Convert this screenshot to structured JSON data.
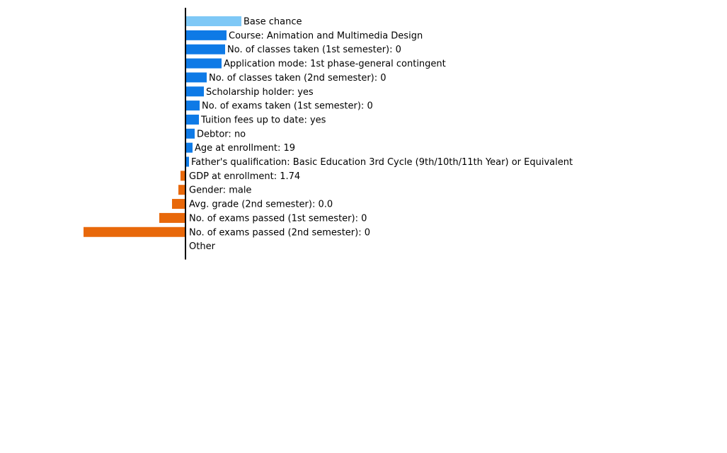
{
  "chart_data": {
    "type": "bar",
    "orientation": "horizontal",
    "title": "",
    "xlabel": "",
    "ylabel": "",
    "grid": false,
    "legend": "none",
    "colors": {
      "base": "#7ec8f6",
      "positive": "#0e7ae6",
      "negative": "#e8680a",
      "axis": "#000000"
    },
    "bars": [
      {
        "label": "Base chance",
        "value": 7.9,
        "kind": "base"
      },
      {
        "label": "Course: Animation and Multimedia Design",
        "value": 5.8,
        "kind": "positive"
      },
      {
        "label": "No. of classes taken (1st semester): 0",
        "value": 5.6,
        "kind": "positive"
      },
      {
        "label": "Application mode: 1st phase-general contingent",
        "value": 5.1,
        "kind": "positive"
      },
      {
        "label": "No. of classes taken (2nd semester): 0",
        "value": 3.0,
        "kind": "positive"
      },
      {
        "label": "Scholarship holder: yes",
        "value": 2.6,
        "kind": "positive"
      },
      {
        "label": "No. of exams taken (1st semester): 0",
        "value": 2.0,
        "kind": "positive"
      },
      {
        "label": "Tuition fees up to date: yes",
        "value": 1.9,
        "kind": "positive"
      },
      {
        "label": "Debtor: no",
        "value": 1.3,
        "kind": "positive"
      },
      {
        "label": "Age at enrollment: 19",
        "value": 1.0,
        "kind": "positive"
      },
      {
        "label": "Father's qualification: Basic Education 3rd Cycle (9th/10th/11th Year) or Equivalent",
        "value": 0.5,
        "kind": "positive"
      },
      {
        "label": "GDP at enrollment: 1.74",
        "value": -0.7,
        "kind": "negative"
      },
      {
        "label": "Gender: male",
        "value": -1.0,
        "kind": "negative"
      },
      {
        "label": "Avg. grade (2nd semester): 0.0",
        "value": -1.9,
        "kind": "negative"
      },
      {
        "label": "No. of exams passed (1st semester): 0",
        "value": -3.7,
        "kind": "negative"
      },
      {
        "label": "No. of exams passed (2nd semester): 0",
        "value": -14.4,
        "kind": "negative"
      },
      {
        "label": "Other",
        "value": 0.0,
        "kind": "neutral"
      }
    ]
  }
}
